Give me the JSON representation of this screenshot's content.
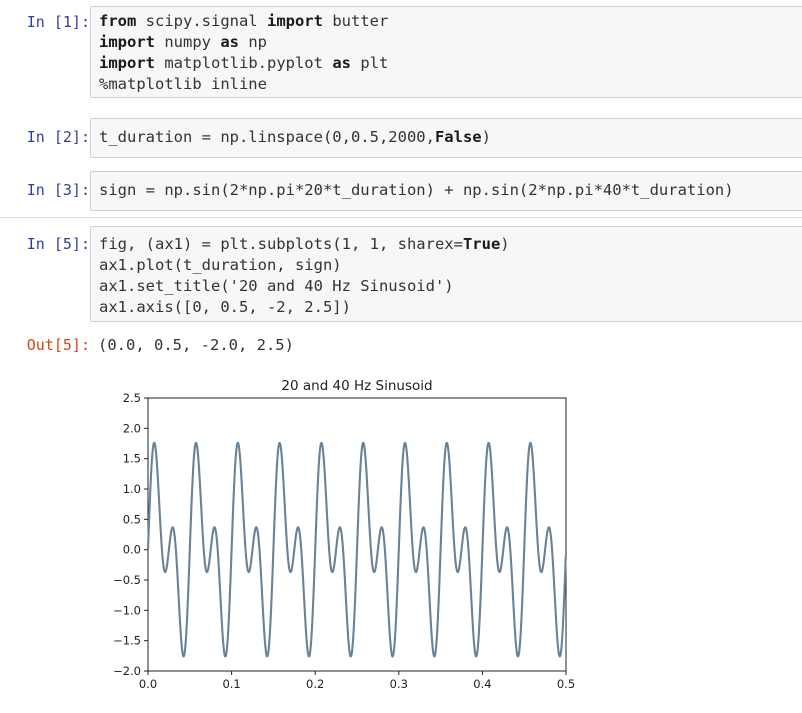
{
  "cells": [
    {
      "prompt": "In [1]:",
      "lines": [
        [
          {
            "t": "from",
            "k": true
          },
          {
            "t": " scipy.signal "
          },
          {
            "t": "import",
            "k": true
          },
          {
            "t": " butter"
          }
        ],
        [
          {
            "t": "import",
            "k": true
          },
          {
            "t": " numpy "
          },
          {
            "t": "as",
            "k": true
          },
          {
            "t": " np"
          }
        ],
        [
          {
            "t": "import",
            "k": true
          },
          {
            "t": " matplotlib.pyplot "
          },
          {
            "t": "as",
            "k": true
          },
          {
            "t": " plt"
          }
        ],
        [
          {
            "t": "%matplotlib inline"
          }
        ]
      ]
    },
    {
      "prompt": "In [2]:",
      "lines": [
        [
          {
            "t": "t_duration = np.linspace(0,0.5,2000,"
          },
          {
            "t": "False",
            "k": true
          },
          {
            "t": ")"
          }
        ]
      ]
    },
    {
      "prompt": "In [3]:",
      "lines": [
        [
          {
            "t": "sign = np.sin(2*np.pi*20*t_duration) + np.sin(2*np.pi*40*t_duration)"
          }
        ]
      ]
    },
    {
      "prompt": "In [5]:",
      "lines": [
        [
          {
            "t": "fig, (ax1) = plt.subplots(1, 1, sharex="
          },
          {
            "t": "True",
            "k": true
          },
          {
            "t": ")"
          }
        ],
        [
          {
            "t": "ax1.plot(t_duration, sign)"
          }
        ],
        [
          {
            "t": "ax1.set_title('20 and 40 Hz Sinusoid')"
          }
        ],
        [
          {
            "t": "ax1.axis([0, 0.5, -2, 2.5])"
          }
        ]
      ]
    }
  ],
  "output": {
    "prompt": "Out[5]:",
    "text": "(0.0, 0.5, -2.0, 2.5)"
  },
  "chart_data": {
    "type": "line",
    "title": "20 and 40 Hz Sinusoid",
    "xlabel": "",
    "ylabel": "",
    "xlim": [
      0,
      0.5
    ],
    "ylim": [
      -2.0,
      2.5
    ],
    "xticks": [
      "0.0",
      "0.1",
      "0.2",
      "0.3",
      "0.4",
      "0.5"
    ],
    "yticks": [
      "2.5",
      "2.0",
      "1.5",
      "1.0",
      "0.5",
      "0.0",
      "−0.5",
      "−1.0",
      "−1.5",
      "−2.0"
    ],
    "series": [
      {
        "function": "sin(2*pi*20*t) + sin(2*pi*40*t)",
        "x_start": 0,
        "x_end": 0.5,
        "n_points": 2000,
        "endpoint": false,
        "color": "#6a8296"
      }
    ]
  },
  "colors": {
    "prompt_in": "#303f9f",
    "prompt_out": "#d84315",
    "cell_bg": "#f7f7f7",
    "cell_border": "#cfcfcf"
  }
}
